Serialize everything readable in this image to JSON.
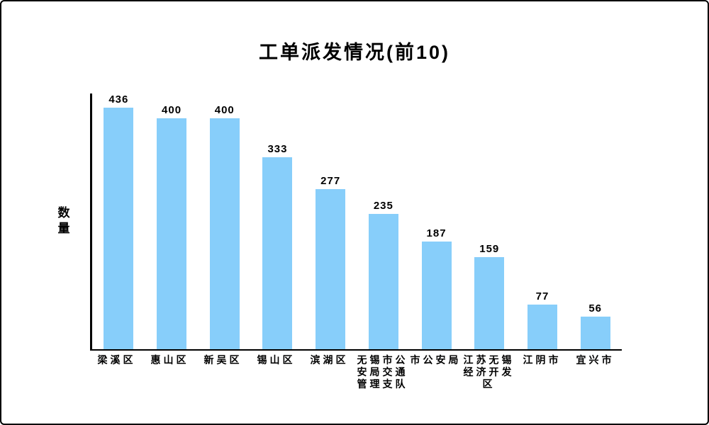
{
  "chart_data": {
    "type": "bar",
    "title": "工单派发情况(前10)",
    "xlabel": "",
    "ylabel": "数量",
    "categories": [
      "梁溪区",
      "惠山区",
      "新吴区",
      "锡山区",
      "滨湖区",
      "无锡市公安局交通管理支队",
      "市公安局",
      "江苏无锡经济开发区",
      "江阴市",
      "宜兴市"
    ],
    "values": [
      436,
      400,
      400,
      333,
      277,
      235,
      187,
      159,
      77,
      56
    ],
    "ylim": [
      0,
      443
    ],
    "grid": false,
    "legend_position": "none",
    "value_labels_shown": true,
    "bar_color": "#87CEFA",
    "axis_color": "#000000",
    "text_color": "#000000"
  }
}
